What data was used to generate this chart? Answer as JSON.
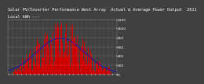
{
  "title": "Solar PV/Inverter Performance West Array  Actual & Average Power Output  2011",
  "subtitle": "Local kWh ---",
  "bg_color": "#404040",
  "plot_bg_color": "#404040",
  "grid_color": "#ffffff",
  "bar_color": "#cc0000",
  "avg_line_color": "#0000dd",
  "text_color": "#ffffff",
  "ylim": [
    0,
    1200
  ],
  "yticks": [
    0,
    200,
    400,
    600,
    800,
    1000,
    1200
  ],
  "ytick_labels": [
    "0",
    "200",
    "400",
    "600",
    "800",
    "1000",
    "1200"
  ],
  "title_fontsize": 3.8,
  "axis_fontsize": 3.2,
  "num_bars": 260,
  "peak_watts": 1100,
  "seed": 42
}
